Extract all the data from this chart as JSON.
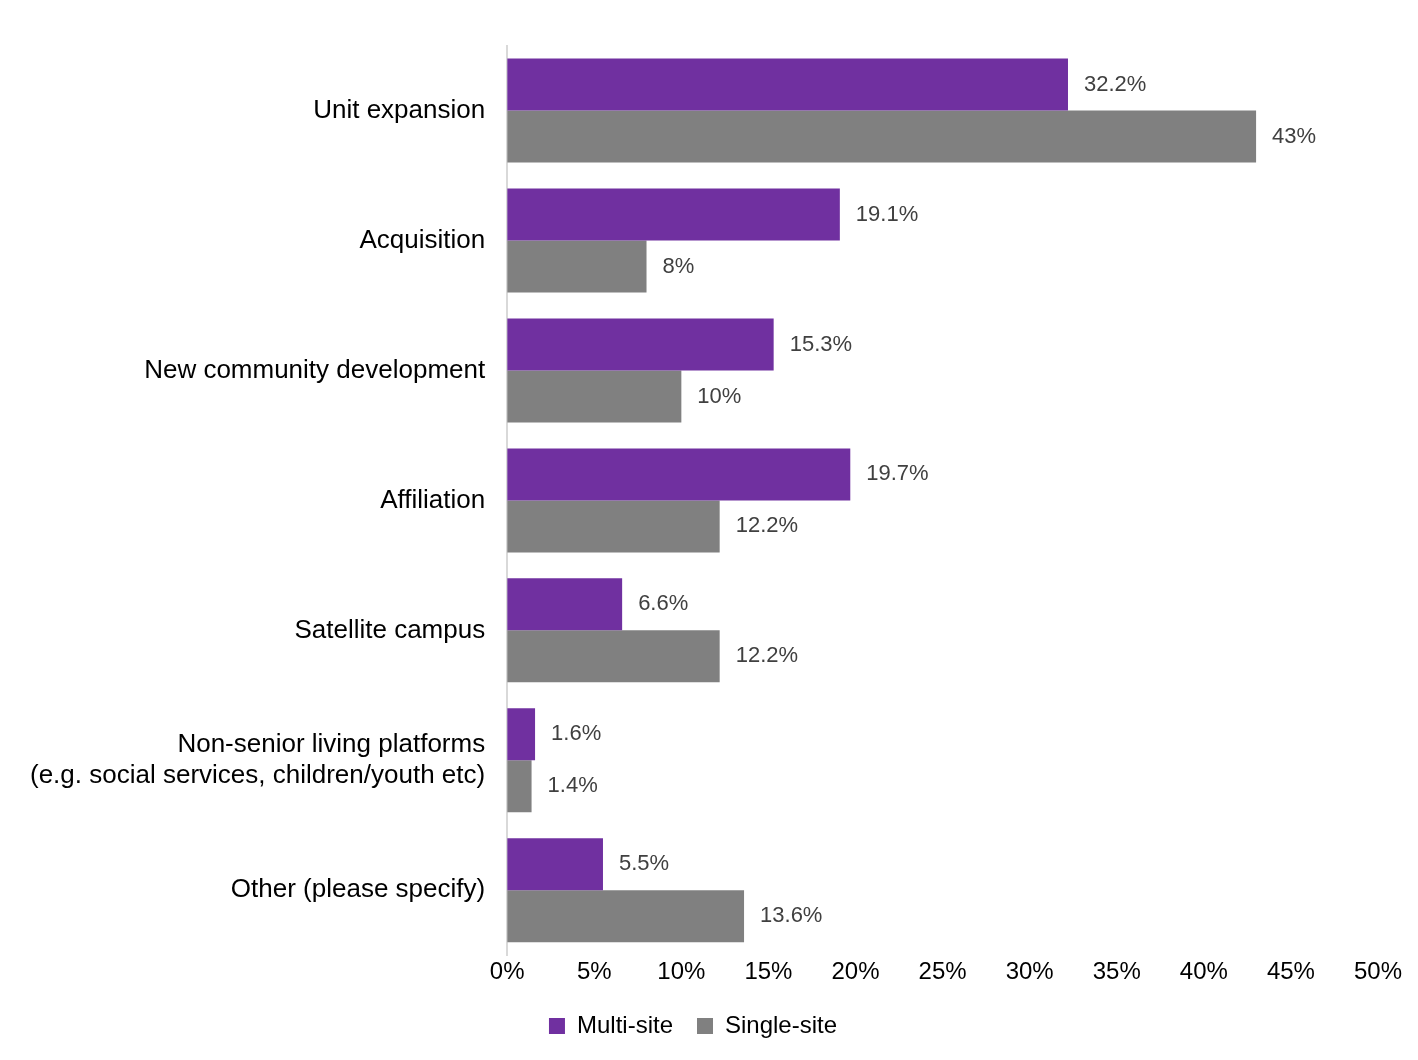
{
  "chart_data": {
    "type": "bar",
    "orientation": "horizontal",
    "categories": [
      "Unit expansion",
      "Acquisition",
      "New community development",
      "Affiliation",
      "Satellite campus",
      "Non-senior living platforms\n(e.g. social services, children/youth etc)",
      "Other (please specify)"
    ],
    "series": [
      {
        "name": "Multi-site",
        "color": "#7030a0",
        "values": [
          32.2,
          19.1,
          15.3,
          19.7,
          6.6,
          1.6,
          5.5
        ],
        "value_labels": [
          "32.2%",
          "19.1%",
          "15.3%",
          "19.7%",
          "6.6%",
          "1.6%",
          "5.5%"
        ]
      },
      {
        "name": "Single-site",
        "color": "#808080",
        "values": [
          43,
          8,
          10,
          12.2,
          12.2,
          1.4,
          13.6
        ],
        "value_labels": [
          "43%",
          "8%",
          "10%",
          "12.2%",
          "12.2%",
          "1.4%",
          "13.6%"
        ]
      }
    ],
    "xlim": [
      0,
      50
    ],
    "xticks": [
      {
        "value": 0,
        "label": "0%"
      },
      {
        "value": 5,
        "label": "5%"
      },
      {
        "value": 10,
        "label": "10%"
      },
      {
        "value": 15,
        "label": "15%"
      },
      {
        "value": 20,
        "label": "20%"
      },
      {
        "value": 25,
        "label": "25%"
      },
      {
        "value": 30,
        "label": "30%"
      },
      {
        "value": 35,
        "label": "35%"
      },
      {
        "value": 40,
        "label": "40%"
      },
      {
        "value": 45,
        "label": "45%"
      },
      {
        "value": 50,
        "label": "50%"
      }
    ],
    "grid": false,
    "legend": "bottom"
  }
}
